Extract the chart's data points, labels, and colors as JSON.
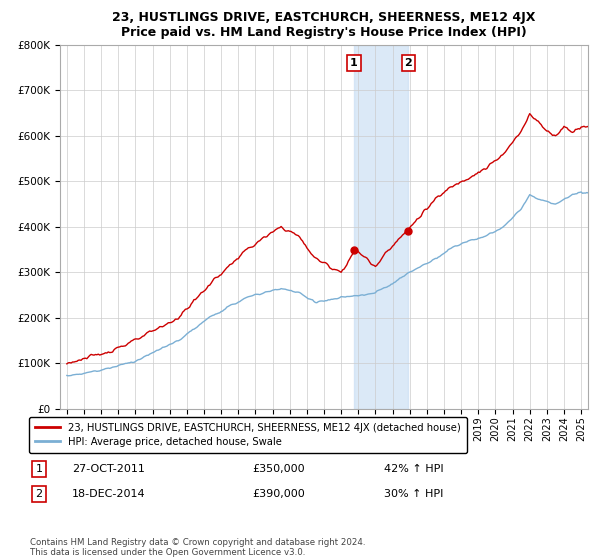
{
  "title": "23, HUSTLINGS DRIVE, EASTCHURCH, SHEERNESS, ME12 4JX",
  "subtitle": "Price paid vs. HM Land Registry's House Price Index (HPI)",
  "legend_line1": "23, HUSTLINGS DRIVE, EASTCHURCH, SHEERNESS, ME12 4JX (detached house)",
  "legend_line2": "HPI: Average price, detached house, Swale",
  "annotation1_label": "1",
  "annotation1_date": "27-OCT-2011",
  "annotation1_price": "£350,000",
  "annotation1_hpi": "42% ↑ HPI",
  "annotation2_label": "2",
  "annotation2_date": "18-DEC-2014",
  "annotation2_price": "£390,000",
  "annotation2_hpi": "30% ↑ HPI",
  "footer": "Contains HM Land Registry data © Crown copyright and database right 2024.\nThis data is licensed under the Open Government Licence v3.0.",
  "red_color": "#cc0000",
  "blue_color": "#7bafd4",
  "annotation_box_color": "#cc0000",
  "shaded_box_color": "#cce0f5",
  "ylim": [
    0,
    800000
  ],
  "yticks": [
    0,
    100000,
    200000,
    300000,
    400000,
    500000,
    600000,
    700000,
    800000
  ],
  "ytick_labels": [
    "£0",
    "£100K",
    "£200K",
    "£300K",
    "£400K",
    "£500K",
    "£600K",
    "£700K",
    "£800K"
  ]
}
